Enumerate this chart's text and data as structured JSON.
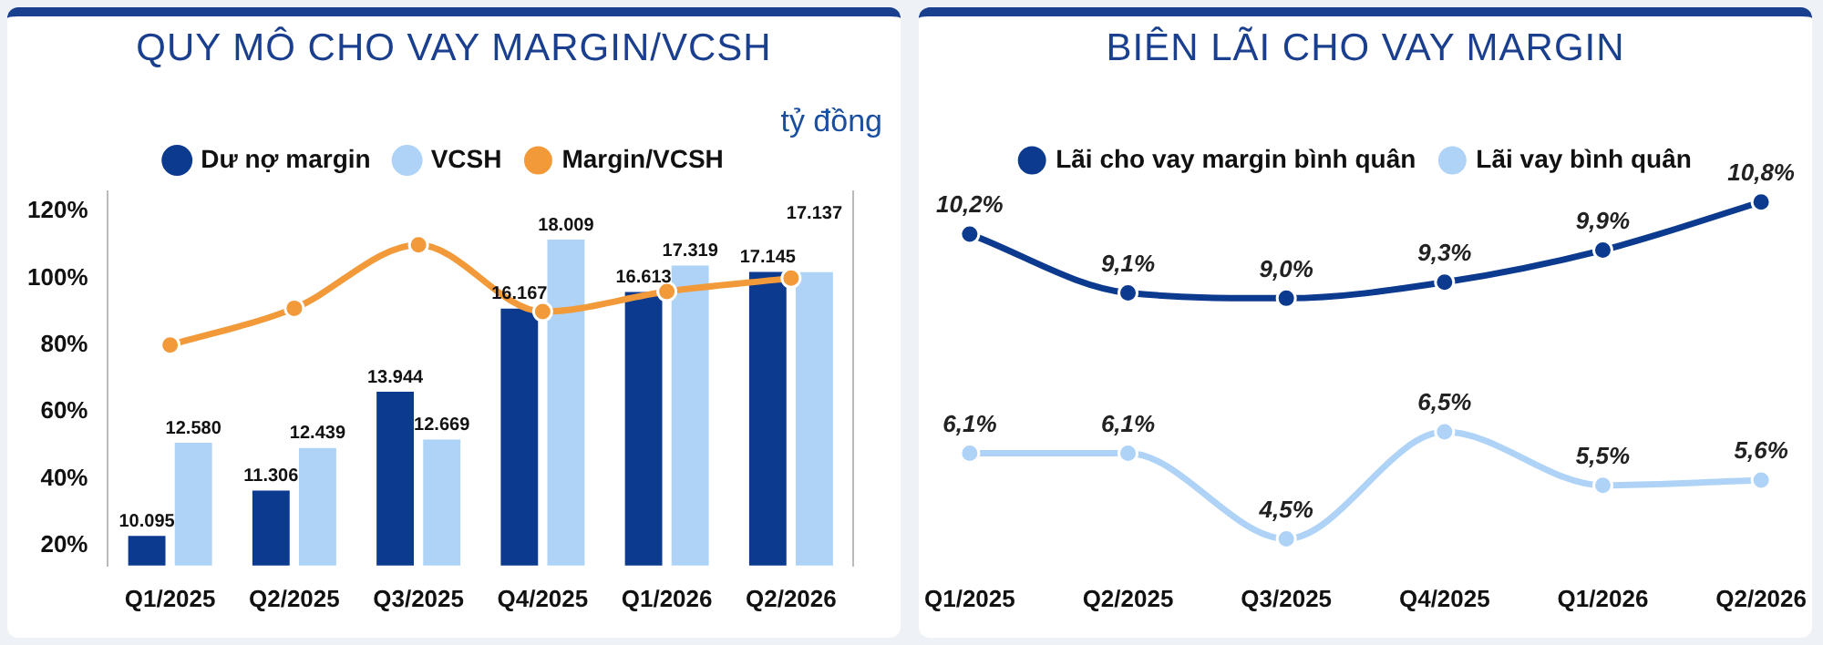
{
  "chart_data": [
    {
      "type": "bar",
      "title": "QUY MÔ CHO VAY MARGIN/VCSH",
      "annotations": [
        "tỷ đồng"
      ],
      "categories": [
        "Q1/2025",
        "Q2/2025",
        "Q3/2025",
        "Q4/2025",
        "Q1/2026",
        "Q2/2026"
      ],
      "series": [
        {
          "name": "Dư nợ margin",
          "color": "#0b3a8f",
          "axis": "y2",
          "values": [
            10095,
            11306,
            13944,
            16167,
            16613,
            17145
          ],
          "value_labels": [
            "10.095",
            "11.306",
            "13.944",
            "16.167",
            "16.613",
            "17.145"
          ]
        },
        {
          "name": "VCSH",
          "color": "#aed3f7",
          "axis": "y2",
          "values": [
            12580,
            12439,
            12669,
            18009,
            17319,
            17137
          ],
          "value_labels": [
            "12.580",
            "12.439",
            "12.669",
            "18.009",
            "17.319",
            "17.137"
          ]
        },
        {
          "name": "Margin/VCSH",
          "type": "line",
          "color": "#f29a3a",
          "values": [
            80,
            91,
            110,
            90,
            96,
            100
          ]
        }
      ],
      "ylim": [
        14,
        126
      ],
      "yticks": [
        {
          "value": 20,
          "label": "20%"
        },
        {
          "value": 40,
          "label": "40%"
        },
        {
          "value": 60,
          "label": "60%"
        },
        {
          "value": 80,
          "label": "80%"
        },
        {
          "value": 100,
          "label": "100%"
        },
        {
          "value": 120,
          "label": "120%"
        }
      ],
      "y2lim": [
        9300,
        19300
      ],
      "grid": false,
      "legend": "top",
      "marker": "circle",
      "line_style": "solid"
    },
    {
      "type": "line",
      "title": "BIÊN LÃI CHO VAY MARGIN",
      "categories": [
        "Q1/2025",
        "Q2/2025",
        "Q3/2025",
        "Q4/2025",
        "Q1/2026",
        "Q2/2026"
      ],
      "series": [
        {
          "name": "Lãi cho vay margin bình quân",
          "color": "#0b3a8f",
          "values": [
            10.2,
            9.1,
            9.0,
            9.3,
            9.9,
            10.8
          ],
          "value_labels": [
            "10,2%",
            "9,1%",
            "9,0%",
            "9,3%",
            "9,9%",
            "10,8%"
          ]
        },
        {
          "name": "Lãi vay bình quân",
          "color": "#aed3f7",
          "values": [
            6.1,
            6.1,
            4.5,
            6.5,
            5.5,
            5.6
          ],
          "value_labels": [
            "6,1%",
            "6,1%",
            "4,5%",
            "6,5%",
            "5,5%",
            "5,6%"
          ]
        }
      ],
      "tick_labels": "x",
      "grid": false,
      "legend": "top",
      "marker": "circle",
      "line_style": "solid"
    }
  ]
}
